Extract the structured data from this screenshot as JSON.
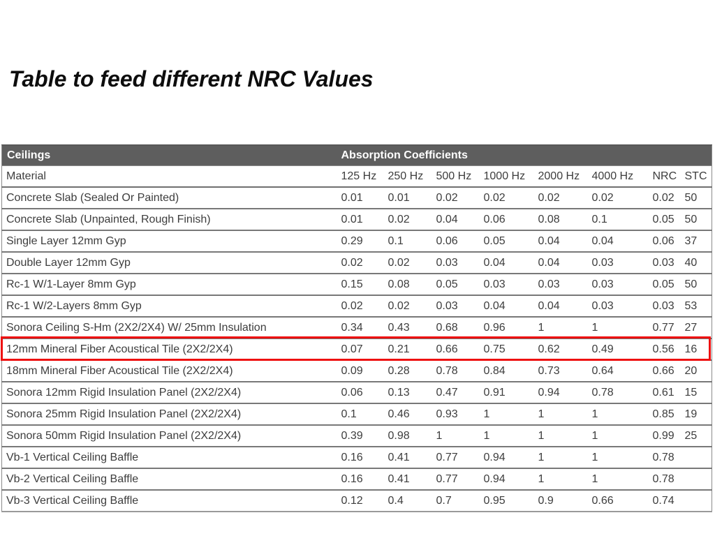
{
  "page": {
    "title": "Table to feed different NRC Values"
  },
  "table": {
    "group_headers": {
      "ceilings": "Ceilings",
      "absorption": "Absorption Coefficients"
    },
    "columns": [
      "Material",
      "125 Hz",
      "250 Hz",
      "500 Hz",
      "1000 Hz",
      "2000 Hz",
      "4000 Hz",
      "NRC",
      "STC"
    ],
    "rows": [
      {
        "material": "Concrete Slab (Sealed Or Painted)",
        "values": [
          "0.01",
          "0.01",
          "0.02",
          "0.02",
          "0.02",
          "0.02",
          "0.02",
          "50"
        ]
      },
      {
        "material": "Concrete Slab (Unpainted, Rough Finish)",
        "values": [
          "0.01",
          "0.02",
          "0.04",
          "0.06",
          "0.08",
          "0.1",
          "0.05",
          "50"
        ]
      },
      {
        "material": "Single Layer 12mm Gyp",
        "values": [
          "0.29",
          "0.1",
          "0.06",
          "0.05",
          "0.04",
          "0.04",
          "0.06",
          "37"
        ]
      },
      {
        "material": "Double Layer 12mm Gyp",
        "values": [
          "0.02",
          "0.02",
          "0.03",
          "0.04",
          "0.04",
          "0.03",
          "0.03",
          "40"
        ]
      },
      {
        "material": "Rc-1 W/1-Layer 8mm Gyp",
        "values": [
          "0.15",
          "0.08",
          "0.05",
          "0.03",
          "0.03",
          "0.03",
          "0.05",
          "50"
        ]
      },
      {
        "material": "Rc-1 W/2-Layers 8mm Gyp",
        "values": [
          "0.02",
          "0.02",
          "0.03",
          "0.04",
          "0.04",
          "0.03",
          "0.03",
          "53"
        ]
      },
      {
        "material": "Sonora Ceiling S-Hm (2X2/2X4) W/ 25mm Insulation",
        "values": [
          "0.34",
          "0.43",
          "0.68",
          "0.96",
          "1",
          "1",
          "0.77",
          "27"
        ]
      },
      {
        "material": "12mm Mineral Fiber Acoustical Tile (2X2/2X4)",
        "values": [
          "0.07",
          "0.21",
          "0.66",
          "0.75",
          "0.62",
          "0.49",
          "0.56",
          "16"
        ]
      },
      {
        "material": "18mm Mineral Fiber Acoustical Tile (2X2/2X4)",
        "values": [
          "0.09",
          "0.28",
          "0.78",
          "0.84",
          "0.73",
          "0.64",
          "0.66",
          "20"
        ]
      },
      {
        "material": "Sonora 12mm Rigid Insulation Panel (2X2/2X4)",
        "values": [
          "0.06",
          "0.13",
          "0.47",
          "0.91",
          "0.94",
          "0.78",
          "0.61",
          "15"
        ]
      },
      {
        "material": "Sonora 25mm Rigid Insulation Panel (2X2/2X4)",
        "values": [
          "0.1",
          "0.46",
          "0.93",
          "1",
          "1",
          "1",
          "0.85",
          "19"
        ]
      },
      {
        "material": "Sonora 50mm Rigid Insulation Panel (2X2/2X4)",
        "values": [
          "0.39",
          "0.98",
          "1",
          "1",
          "1",
          "1",
          "0.99",
          "25"
        ]
      },
      {
        "material": "Vb-1 Vertical Ceiling Baffle",
        "values": [
          "0.16",
          "0.41",
          "0.77",
          "0.94",
          "1",
          "1",
          "0.78",
          ""
        ]
      },
      {
        "material": "Vb-2 Vertical Ceiling Baffle",
        "values": [
          "0.16",
          "0.41",
          "0.77",
          "0.94",
          "1",
          "1",
          "0.78",
          ""
        ]
      },
      {
        "material": "Vb-3 Vertical Ceiling Baffle",
        "values": [
          "0.12",
          "0.4",
          "0.7",
          "0.95",
          "0.9",
          "0.66",
          "0.74",
          ""
        ]
      }
    ],
    "highlight": {
      "row_index": 7,
      "row_material": "12mm Mineral Fiber Acoustical Tile (2X2/2X4)",
      "border_color": "#ee1111"
    },
    "colors": {
      "header_bg": "#5e5e5e",
      "header_text": "#ffffff",
      "body_text": "#3d3d3d",
      "row_divider": "#787878"
    }
  },
  "chart_data": {
    "type": "table",
    "title": "Table to feed different NRC Values",
    "columns": [
      "Material",
      "125 Hz",
      "250 Hz",
      "500 Hz",
      "1000 Hz",
      "2000 Hz",
      "4000 Hz",
      "NRC",
      "STC"
    ],
    "rows": [
      [
        "Concrete Slab (Sealed Or Painted)",
        0.01,
        0.01,
        0.02,
        0.02,
        0.02,
        0.02,
        0.02,
        50
      ],
      [
        "Concrete Slab (Unpainted, Rough Finish)",
        0.01,
        0.02,
        0.04,
        0.06,
        0.08,
        0.1,
        0.05,
        50
      ],
      [
        "Single Layer 12mm Gyp",
        0.29,
        0.1,
        0.06,
        0.05,
        0.04,
        0.04,
        0.06,
        37
      ],
      [
        "Double Layer 12mm Gyp",
        0.02,
        0.02,
        0.03,
        0.04,
        0.04,
        0.03,
        0.03,
        40
      ],
      [
        "Rc-1 W/1-Layer 8mm Gyp",
        0.15,
        0.08,
        0.05,
        0.03,
        0.03,
        0.03,
        0.05,
        50
      ],
      [
        "Rc-1 W/2-Layers 8mm Gyp",
        0.02,
        0.02,
        0.03,
        0.04,
        0.04,
        0.03,
        0.03,
        53
      ],
      [
        "Sonora Ceiling S-Hm (2X2/2X4) W/ 25mm Insulation",
        0.34,
        0.43,
        0.68,
        0.96,
        1,
        1,
        0.77,
        27
      ],
      [
        "12mm Mineral Fiber Acoustical Tile (2X2/2X4)",
        0.07,
        0.21,
        0.66,
        0.75,
        0.62,
        0.49,
        0.56,
        16
      ],
      [
        "18mm Mineral Fiber Acoustical Tile (2X2/2X4)",
        0.09,
        0.28,
        0.78,
        0.84,
        0.73,
        0.64,
        0.66,
        20
      ],
      [
        "Sonora 12mm Rigid Insulation Panel (2X2/2X4)",
        0.06,
        0.13,
        0.47,
        0.91,
        0.94,
        0.78,
        0.61,
        15
      ],
      [
        "Sonora 25mm Rigid Insulation Panel (2X2/2X4)",
        0.1,
        0.46,
        0.93,
        1,
        1,
        1,
        0.85,
        19
      ],
      [
        "Sonora 50mm Rigid Insulation Panel (2X2/2X4)",
        0.39,
        0.98,
        1,
        1,
        1,
        1,
        0.99,
        25
      ],
      [
        "Vb-1 Vertical Ceiling Baffle",
        0.16,
        0.41,
        0.77,
        0.94,
        1,
        1,
        0.78,
        null
      ],
      [
        "Vb-2 Vertical Ceiling Baffle",
        0.16,
        0.41,
        0.77,
        0.94,
        1,
        1,
        0.78,
        null
      ],
      [
        "Vb-3 Vertical Ceiling Baffle",
        0.12,
        0.4,
        0.7,
        0.95,
        0.9,
        0.66,
        0.74,
        null
      ]
    ]
  }
}
